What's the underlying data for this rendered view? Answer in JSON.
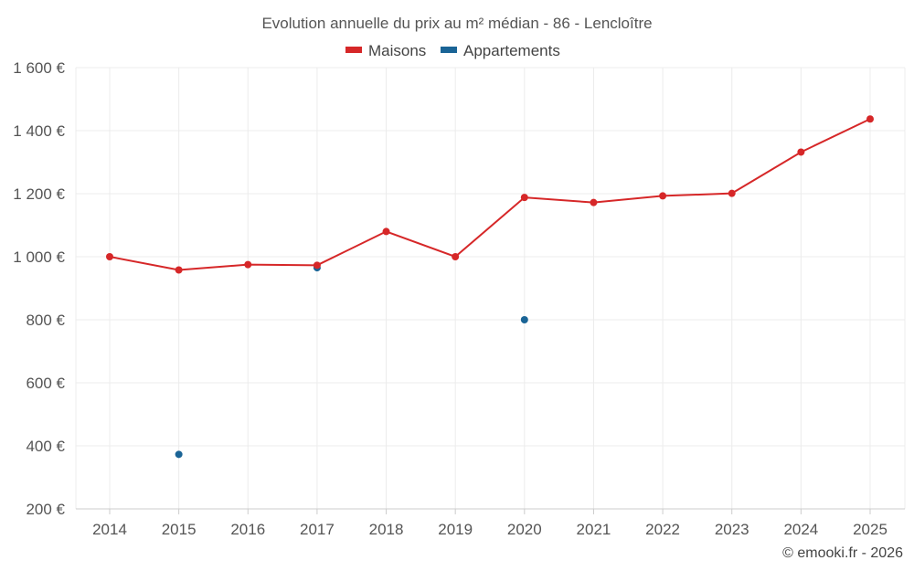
{
  "chart_data": {
    "type": "line",
    "title": "Evolution annuelle du prix au m² médian - 86 - Lencloître",
    "xlabel": "",
    "ylabel": "",
    "categories": [
      "2014",
      "2015",
      "2016",
      "2017",
      "2018",
      "2019",
      "2020",
      "2021",
      "2022",
      "2023",
      "2024",
      "2025"
    ],
    "ylim": [
      200,
      1600
    ],
    "yticks": [
      200,
      400,
      600,
      800,
      1000,
      1200,
      1400,
      1600
    ],
    "ytick_labels": [
      "200 €",
      "400 €",
      "600 €",
      "800 €",
      "1 000 €",
      "1 200 €",
      "1 400 €",
      "1 600 €"
    ],
    "grid": true,
    "legend_position": "top-center",
    "series": [
      {
        "name": "Maisons",
        "color": "#d62728",
        "show_line": true,
        "values": [
          1000,
          958,
          975,
          973,
          1080,
          1000,
          1188,
          1172,
          1193,
          1201,
          1332,
          1437
        ]
      },
      {
        "name": "Appartements",
        "color": "#1a6496",
        "show_line": false,
        "values": [
          null,
          373,
          null,
          965,
          null,
          null,
          800,
          null,
          null,
          null,
          null,
          null
        ]
      }
    ],
    "credit": "© emooki.fr - 2026"
  }
}
